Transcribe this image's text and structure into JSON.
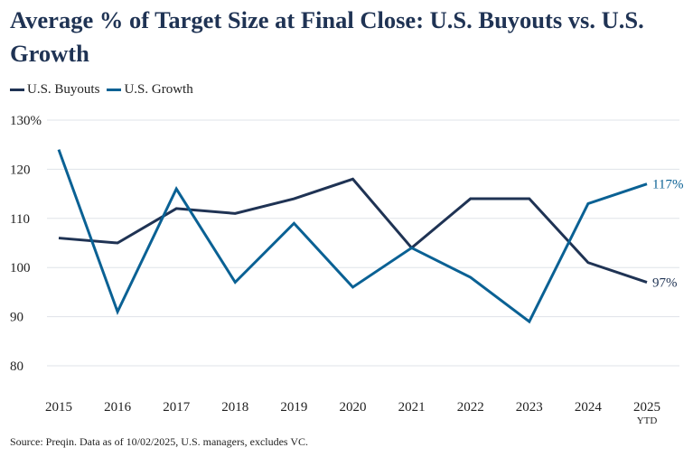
{
  "chart_data": {
    "type": "line",
    "title": "Average % of Target Size at Final Close: U.S. Buyouts vs. U.S. Growth",
    "categories": [
      "2015",
      "2016",
      "2017",
      "2018",
      "2019",
      "2020",
      "2021",
      "2022",
      "2023",
      "2024",
      "2025"
    ],
    "category_sublabels": [
      "",
      "",
      "",
      "",
      "",
      "",
      "",
      "",
      "",
      "",
      "YTD"
    ],
    "ylim": [
      80,
      130
    ],
    "yticks": [
      80,
      90,
      100,
      110,
      120,
      130
    ],
    "ytick_labels": [
      "80",
      "90",
      "100",
      "110",
      "120",
      "130%"
    ],
    "grid": true,
    "legend_position": "top-left",
    "series": [
      {
        "name": "U.S. Buyouts",
        "color": "#1f3354",
        "values": [
          106,
          105,
          112,
          111,
          114,
          118,
          104,
          114,
          114,
          101,
          97
        ],
        "end_label": "97%"
      },
      {
        "name": "U.S. Growth",
        "color": "#0a6194",
        "values": [
          124,
          91,
          116,
          97,
          109,
          96,
          104,
          98,
          89,
          113,
          117
        ],
        "end_label": "117%"
      }
    ],
    "source": "Source: Preqin. Data as of 10/02/2025, U.S. managers, excludes VC."
  }
}
